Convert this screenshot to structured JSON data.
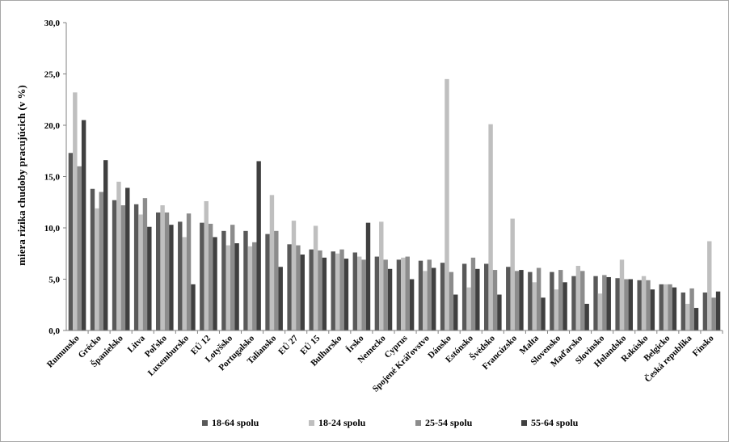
{
  "chart_data": {
    "type": "bar",
    "title": "",
    "xlabel": "",
    "ylabel": "miera rizika chudoby pracujúcich (v %)",
    "ylim": [
      0,
      30
    ],
    "yticks": [
      "0,0",
      "5,0",
      "10,0",
      "15,0",
      "20,0",
      "25,0",
      "30,0"
    ],
    "grid": false,
    "legend_position": "bottom",
    "categories": [
      "Rumunsko",
      "Grécko",
      "Španielsko",
      "Litva",
      "Poľsko",
      "Luxembursko",
      "EÚ 12",
      "Lotyšsko",
      "Portugalsko",
      "Taliansko",
      "EÚ 27",
      "EÚ 15",
      "Bulharsko",
      "Írsko",
      "Nemecko",
      "Cyprus",
      "Spojené Kráľovstvo",
      "Dánsko",
      "Estónsko",
      "Švédsko",
      "Francúzsko",
      "Malta",
      "Slovensko",
      "Maďarsko",
      "Slovinsko",
      "Holandsko",
      "Rakúsko",
      "Belgicko",
      "Česká republika",
      "Fínsko"
    ],
    "series": [
      {
        "name": "18-64 spolu",
        "color": "#595959",
        "values": [
          17.3,
          13.8,
          12.7,
          12.3,
          11.5,
          10.6,
          10.5,
          9.7,
          9.7,
          9.4,
          8.4,
          7.9,
          7.7,
          7.6,
          7.2,
          6.9,
          6.8,
          6.6,
          6.5,
          6.5,
          6.2,
          5.7,
          5.7,
          5.3,
          5.3,
          5.1,
          4.9,
          4.5,
          3.7,
          3.7
        ]
      },
      {
        "name": "18-24 spolu",
        "color": "#bfbfbf",
        "values": [
          23.2,
          11.9,
          14.5,
          11.3,
          12.2,
          9.1,
          12.6,
          8.3,
          8.2,
          13.2,
          10.7,
          10.2,
          7.5,
          7.2,
          10.6,
          7.1,
          5.8,
          24.5,
          4.2,
          20.1,
          10.9,
          4.7,
          4.0,
          6.3,
          3.6,
          6.9,
          5.3,
          4.5,
          2.6,
          8.7
        ]
      },
      {
        "name": "25-54 spolu",
        "color": "#8c8c8c",
        "values": [
          16.0,
          13.5,
          12.2,
          12.9,
          11.5,
          11.4,
          10.4,
          10.3,
          8.6,
          9.7,
          8.3,
          7.8,
          7.9,
          6.9,
          6.9,
          7.2,
          6.9,
          5.7,
          7.1,
          5.9,
          5.8,
          6.1,
          5.9,
          5.8,
          5.4,
          5.0,
          4.9,
          4.5,
          4.1,
          3.2
        ]
      },
      {
        "name": "55-64 spolu",
        "color": "#404040",
        "values": [
          20.5,
          16.6,
          13.9,
          10.1,
          10.3,
          4.5,
          9.1,
          8.5,
          16.5,
          6.2,
          7.4,
          7.1,
          7.0,
          10.5,
          6.0,
          5.0,
          6.1,
          3.5,
          6.0,
          3.5,
          5.9,
          3.2,
          4.7,
          2.6,
          5.2,
          5.0,
          4.0,
          4.2,
          2.2,
          3.8
        ]
      }
    ]
  }
}
